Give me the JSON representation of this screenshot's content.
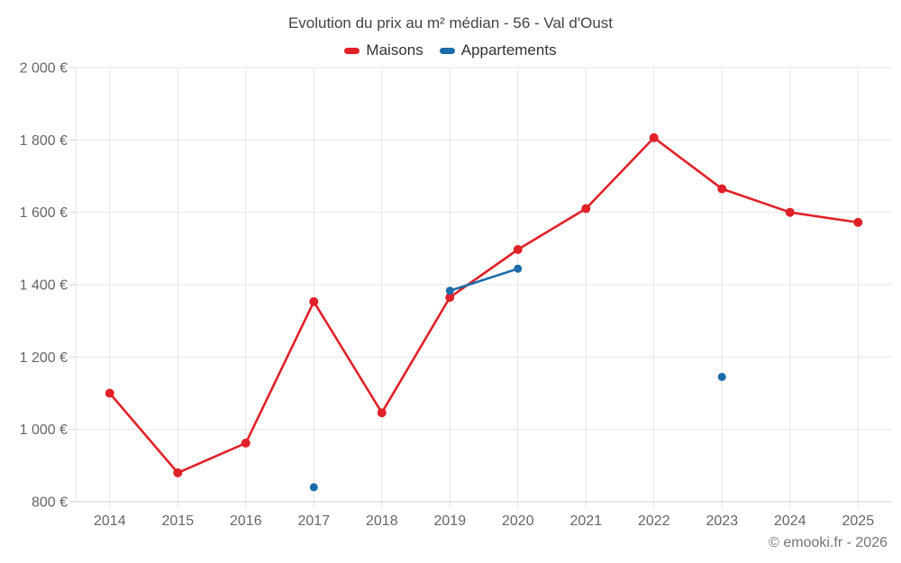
{
  "title": "Evolution du prix au m² médian - 56 - Val d'Oust",
  "attribution": "© emooki.fr - 2026",
  "legend": [
    {
      "label": "Maisons",
      "color": "#e02128"
    },
    {
      "label": "Appartements",
      "color": "#1b6ca8"
    }
  ],
  "chart_data": {
    "type": "line",
    "title": "Evolution du prix au m² médian - 56 - Val d'Oust",
    "categories": [
      2014,
      2015,
      2016,
      2017,
      2018,
      2019,
      2020,
      2021,
      2022,
      2023,
      2024,
      2025
    ],
    "series": [
      {
        "name": "Maisons",
        "color": "#e02128",
        "marker_radius": 5,
        "points": [
          {
            "x": 2014,
            "y": 1100
          },
          {
            "x": 2015,
            "y": 880
          },
          {
            "x": 2016,
            "y": 962
          },
          {
            "x": 2017,
            "y": 1353
          },
          {
            "x": 2018,
            "y": 1046
          },
          {
            "x": 2019,
            "y": 1365
          },
          {
            "x": 2020,
            "y": 1497
          },
          {
            "x": 2021,
            "y": 1610
          },
          {
            "x": 2022,
            "y": 1806
          },
          {
            "x": 2023,
            "y": 1665
          },
          {
            "x": 2024,
            "y": 1600
          },
          {
            "x": 2025,
            "y": 1572
          }
        ]
      },
      {
        "name": "Appartements",
        "color": "#1b6ca8",
        "marker_radius": 4.5,
        "points": [
          {
            "x": 2017,
            "y": 840
          },
          {
            "x": 2019,
            "y": 1383
          },
          {
            "x": 2020,
            "y": 1444
          },
          {
            "x": 2023,
            "y": 1145
          }
        ]
      }
    ],
    "xlabel": "",
    "ylabel": "",
    "ylim": [
      800,
      2000
    ],
    "ytick_step": 200,
    "ytick_labels": [
      "800 €",
      "1 000 €",
      "1 200 €",
      "1 400 €",
      "1 600 €",
      "1 800 €",
      "2 000 €"
    ],
    "grid": true,
    "grid_color": "#e6e6e6",
    "axis_color": "#d0d0d0",
    "legend_position": "top"
  }
}
